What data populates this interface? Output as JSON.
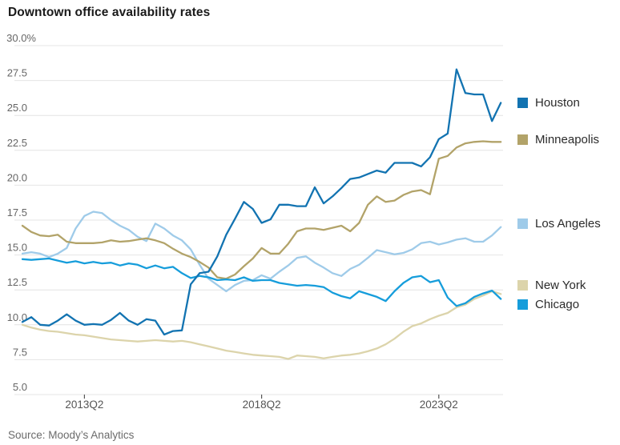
{
  "title": "Downtown office availability rates",
  "source": "Source: Moody’s Analytics",
  "chart_data": {
    "type": "line",
    "title": "Downtown office availability rates",
    "unit": "percent",
    "ylim": [
      5,
      30
    ],
    "grid": true,
    "legend_position": "right",
    "y_ticks": [
      30,
      27.5,
      25,
      22.5,
      20,
      17.5,
      15,
      12.5,
      10,
      7.5,
      5
    ],
    "y_tick_labels": [
      "30.0%",
      "27.5",
      "25.0",
      "22.5",
      "20.0",
      "17.5",
      "15.0",
      "12.5",
      "10.0",
      "7.5",
      "5.0"
    ],
    "x_tick_labels": [
      "2013Q2",
      "2018Q2",
      "2023Q2"
    ],
    "x_tick_indices": [
      7,
      27,
      47
    ],
    "x_frequency": "quarterly",
    "series": [
      {
        "name": "Houston",
        "color": "#1273b1",
        "values": [
          10.2,
          10.55,
          10.0,
          9.95,
          10.3,
          10.75,
          10.3,
          10.0,
          10.05,
          10.0,
          10.35,
          10.85,
          10.3,
          10.0,
          10.4,
          10.3,
          9.3,
          9.55,
          9.6,
          12.9,
          13.7,
          13.8,
          14.9,
          16.45,
          17.6,
          18.8,
          18.3,
          17.3,
          17.55,
          18.6,
          18.6,
          18.5,
          18.5,
          19.85,
          18.7,
          19.2,
          19.8,
          20.45,
          20.55,
          20.8,
          21.05,
          20.9,
          21.6,
          21.6,
          21.6,
          21.35,
          22.0,
          23.3,
          23.7,
          28.3,
          26.6,
          26.5,
          26.5,
          24.6,
          25.9
        ]
      },
      {
        "name": "Minneapolis",
        "color": "#b2a369",
        "values": [
          17.1,
          16.65,
          16.4,
          16.35,
          16.45,
          15.95,
          15.85,
          15.85,
          15.85,
          15.9,
          16.05,
          15.95,
          16.0,
          16.1,
          16.2,
          16.05,
          15.85,
          15.45,
          15.1,
          14.85,
          14.5,
          14.1,
          13.4,
          13.3,
          13.6,
          14.2,
          14.75,
          15.5,
          15.1,
          15.1,
          15.8,
          16.7,
          16.9,
          16.9,
          16.8,
          16.95,
          17.1,
          16.7,
          17.3,
          18.6,
          19.2,
          18.8,
          18.9,
          19.3,
          19.55,
          19.65,
          19.35,
          21.9,
          22.1,
          22.7,
          23.0,
          23.1,
          23.15,
          23.1,
          23.1
        ]
      },
      {
        "name": "Los Angeles",
        "color": "#9fcbe9",
        "values": [
          15.1,
          15.2,
          15.1,
          14.85,
          15.1,
          15.5,
          16.9,
          17.8,
          18.1,
          18.0,
          17.5,
          17.1,
          16.8,
          16.3,
          16.0,
          17.25,
          16.9,
          16.4,
          16.05,
          15.4,
          14.3,
          13.3,
          12.85,
          12.4,
          12.85,
          13.15,
          13.2,
          13.55,
          13.3,
          13.8,
          14.25,
          14.8,
          14.9,
          14.45,
          14.1,
          13.7,
          13.5,
          14.0,
          14.3,
          14.8,
          15.35,
          15.2,
          15.05,
          15.15,
          15.4,
          15.85,
          15.95,
          15.75,
          15.9,
          16.1,
          16.2,
          15.95,
          15.95,
          16.4,
          17.0
        ]
      },
      {
        "name": "New York",
        "color": "#dcd4ab",
        "values": [
          10.0,
          9.8,
          9.65,
          9.55,
          9.5,
          9.4,
          9.3,
          9.25,
          9.15,
          9.05,
          8.95,
          8.9,
          8.85,
          8.8,
          8.85,
          8.9,
          8.85,
          8.8,
          8.85,
          8.75,
          8.6,
          8.45,
          8.3,
          8.15,
          8.05,
          7.95,
          7.85,
          7.8,
          7.75,
          7.7,
          7.55,
          7.8,
          7.75,
          7.7,
          7.6,
          7.7,
          7.8,
          7.85,
          7.95,
          8.1,
          8.3,
          8.6,
          9.0,
          9.5,
          9.9,
          10.1,
          10.4,
          10.65,
          10.85,
          11.25,
          11.45,
          11.85,
          12.1,
          12.4,
          12.2
        ]
      },
      {
        "name": "Chicago",
        "color": "#169ddb",
        "values": [
          14.7,
          14.65,
          14.7,
          14.75,
          14.6,
          14.45,
          14.55,
          14.4,
          14.5,
          14.4,
          14.45,
          14.25,
          14.4,
          14.3,
          14.05,
          14.25,
          14.05,
          14.15,
          13.7,
          13.35,
          13.5,
          13.4,
          13.2,
          13.25,
          13.2,
          13.4,
          13.15,
          13.2,
          13.2,
          13.0,
          12.9,
          12.8,
          12.85,
          12.8,
          12.7,
          12.3,
          12.05,
          11.9,
          12.4,
          12.2,
          12.0,
          11.7,
          12.4,
          13.0,
          13.4,
          13.5,
          13.05,
          13.2,
          11.95,
          11.35,
          11.55,
          12.0,
          12.25,
          12.45,
          11.85
        ]
      }
    ]
  }
}
